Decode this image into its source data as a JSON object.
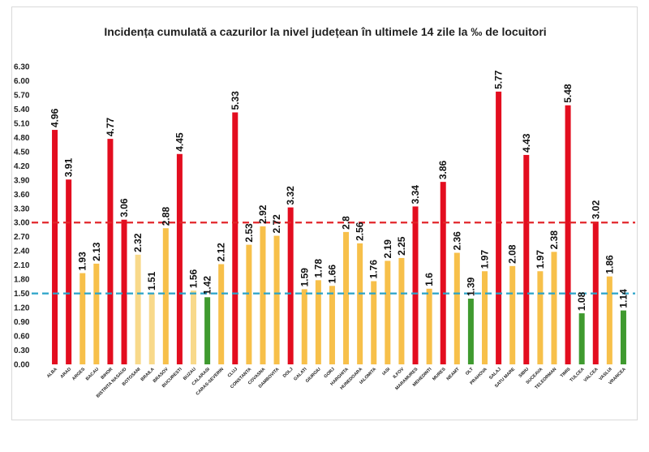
{
  "chart_data": {
    "type": "bar",
    "title": "Incidența cumulată a cazurilor la nivel județean în ultimele 14 zile la ‰ de locuitori",
    "xlabel": "",
    "ylabel": "",
    "ylim": [
      0,
      6.3
    ],
    "yticks": [
      "0.00",
      "0.30",
      "0.60",
      "0.90",
      "1.20",
      "1.50",
      "1.80",
      "2.10",
      "2.40",
      "2.70",
      "3.00",
      "3.30",
      "3.60",
      "3.90",
      "4.20",
      "4.50",
      "4.80",
      "5.10",
      "5.40",
      "5.70",
      "6.00",
      "6.30"
    ],
    "reference_lines": [
      {
        "value": 3.0,
        "color": "#e2262b",
        "style": "dashed"
      },
      {
        "value": 1.5,
        "color": "#2aa3c8",
        "style": "dashed"
      }
    ],
    "colors": {
      "red": "#e30d1f",
      "yellow": "#f7c04a",
      "light_yellow": "#f8d98a",
      "green": "#3f9a2f"
    },
    "categories": [
      "ALBA",
      "ARAD",
      "ARGES",
      "BACAU",
      "BIHOR",
      "BISTRITA NASAUD",
      "BOTOSANI",
      "BRAILA",
      "BRASOV",
      "BUCURESTI",
      "BUZAU",
      "CALARASI",
      "CARAS-SEVERIN",
      "CLUJ",
      "CONSTANTA",
      "COVASNA",
      "DAMBOVITA",
      "DOLJ",
      "GALATI",
      "GIURGIU",
      "GORJ",
      "HARGHITA",
      "HUNEDOARA",
      "IALOMITA",
      "IASI",
      "ILFOV",
      "MARAMURES",
      "MEHEDINTI",
      "MURES",
      "NEAMT",
      "OLT",
      "PRAHOVA",
      "SALAJ",
      "SATU MARE",
      "SIBIU",
      "SUCEAVA",
      "TELEORMAN",
      "TIMIS",
      "TULCEA",
      "VALCEA",
      "VASLUI",
      "VRANCEA"
    ],
    "values": [
      4.96,
      3.91,
      1.93,
      2.13,
      4.77,
      3.06,
      2.32,
      1.51,
      2.88,
      4.45,
      1.56,
      1.42,
      2.12,
      5.33,
      2.53,
      2.92,
      2.72,
      3.32,
      1.59,
      1.78,
      1.66,
      2.8,
      2.56,
      1.76,
      2.19,
      2.25,
      3.34,
      1.6,
      3.86,
      2.36,
      1.39,
      1.97,
      5.77,
      2.08,
      4.43,
      1.97,
      2.38,
      5.48,
      1.08,
      3.02,
      1.86,
      1.14
    ],
    "value_labels": [
      "4.96",
      "3.91",
      "1.93",
      "2.13",
      "4.77",
      "3.06",
      "2.32",
      "1.51",
      "2.88",
      "4.45",
      "1.56",
      "1.42",
      "2.12",
      "5.33",
      "2.53",
      "2.92",
      "2.72",
      "3.32",
      "1.59",
      "1.78",
      "1.66",
      "2.8",
      "2.56",
      "1.76",
      "2.19",
      "2.25",
      "3.34",
      "1.6",
      "3.86",
      "2.36",
      "1.39",
      "1.97",
      "5.77",
      "2.08",
      "4.43",
      "1.97",
      "2.38",
      "5.48",
      "1.08",
      "3.02",
      "1.86",
      "1.14"
    ],
    "bar_colors": [
      "red",
      "red",
      "yellow",
      "yellow",
      "red",
      "red",
      "light_yellow",
      "light_yellow",
      "yellow",
      "red",
      "light_yellow",
      "green",
      "yellow",
      "red",
      "yellow",
      "yellow",
      "yellow",
      "red",
      "yellow",
      "yellow",
      "yellow",
      "yellow",
      "yellow",
      "yellow",
      "yellow",
      "yellow",
      "red",
      "yellow",
      "red",
      "yellow",
      "green",
      "yellow",
      "red",
      "yellow",
      "red",
      "yellow",
      "yellow",
      "red",
      "green",
      "red",
      "yellow",
      "green"
    ]
  }
}
